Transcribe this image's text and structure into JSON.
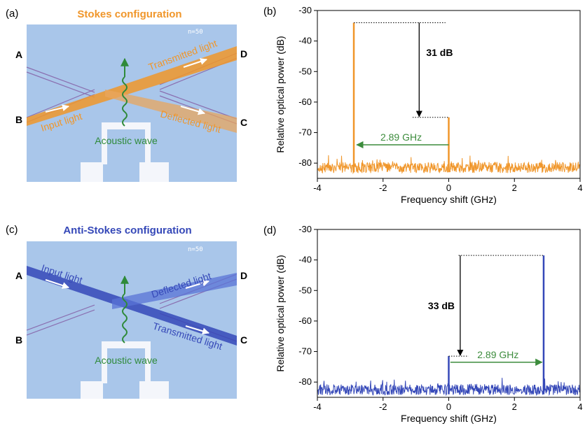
{
  "panels": {
    "a": {
      "letter": "(a)",
      "title": "Stokes configuration",
      "title_color": "#f0962a",
      "beam_color": "#f0962a",
      "scale_text": "n=50",
      "port_labels": {
        "A": "A",
        "B": "B",
        "C": "C",
        "D": "D"
      },
      "input_label": "Input light",
      "transmitted_label": "Transmitted light",
      "deflected_label": "Deflected light",
      "acoustic_label": "Acoustic wave"
    },
    "c": {
      "letter": "(c)",
      "title": "Anti-Stokes configuration",
      "title_color": "#3548b8",
      "beam_color": "#3548b8",
      "scale_text": "n=50",
      "port_labels": {
        "A": "A",
        "B": "B",
        "C": "C",
        "D": "D"
      },
      "input_label": "Input light",
      "transmitted_label": "Transmitted light",
      "deflected_label": "Deflected light",
      "acoustic_label": "Acoustic wave"
    }
  },
  "chart_data": [
    {
      "panel": "(b)",
      "type": "line",
      "xlabel": "Frequency shift (GHz)",
      "ylabel": "Relative optical power (dB)",
      "xlim": [
        -4,
        4
      ],
      "ylim": [
        -85,
        -30
      ],
      "xticks": [
        -4,
        -2,
        0,
        2,
        4
      ],
      "yticks": [
        -30,
        -40,
        -50,
        -60,
        -70,
        -80
      ],
      "color": "#f0962a",
      "noise_floor": -81.5,
      "peaks": [
        {
          "x": -2.89,
          "y": -34
        },
        {
          "x": 0,
          "y": -65
        }
      ],
      "difference_label": "31 dB",
      "shift_label": "2.89 GHz"
    },
    {
      "panel": "(d)",
      "type": "line",
      "xlabel": "Frequency shift (GHz)",
      "ylabel": "Relative optical power (dB)",
      "xlim": [
        -4,
        4
      ],
      "ylim": [
        -85,
        -30
      ],
      "xticks": [
        -4,
        -2,
        0,
        2,
        4
      ],
      "yticks": [
        -30,
        -40,
        -50,
        -60,
        -70,
        -80
      ],
      "color": "#3548b8",
      "noise_floor": -82.5,
      "peaks": [
        {
          "x": 0,
          "y": -71.5
        },
        {
          "x": 2.89,
          "y": -38.5
        }
      ],
      "difference_label": "33 dB",
      "shift_label": "2.89 GHz"
    }
  ]
}
